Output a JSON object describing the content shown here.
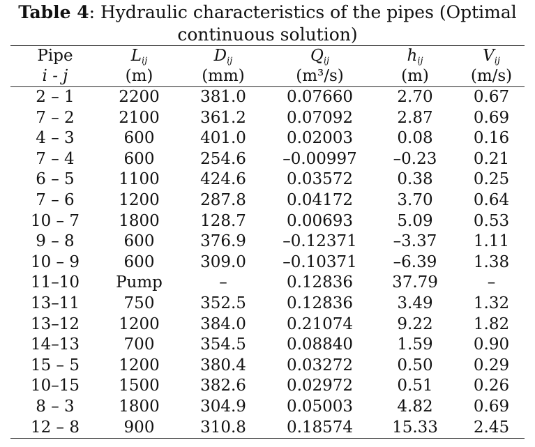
{
  "caption": {
    "label": "Table 4",
    "text": ": Hydraulic characteristics of the pipes (Optimal",
    "text_line2": "continuous solution)"
  },
  "headers": [
    {
      "symbol": "Pipe",
      "sub": "",
      "unit": "i - j",
      "italic_unit": true
    },
    {
      "symbol": "L",
      "sub": "ij",
      "unit": "(m)",
      "italic_unit": false
    },
    {
      "symbol": "D",
      "sub": "ij",
      "unit": "(mm)",
      "italic_unit": false
    },
    {
      "symbol": "Q",
      "sub": "ij",
      "unit": "(m³/s)",
      "italic_unit": false
    },
    {
      "symbol": "h",
      "sub": "ij",
      "unit": "(m)",
      "italic_unit": false
    },
    {
      "symbol": "V",
      "sub": "ij",
      "unit": "(m/s)",
      "italic_unit": false
    }
  ],
  "rows": [
    [
      "2 – 1",
      "2200",
      "381.0",
      "0.07660",
      "2.70",
      "0.67"
    ],
    [
      "7 – 2",
      "2100",
      "361.2",
      "0.07092",
      "2.87",
      "0.69"
    ],
    [
      "4 – 3",
      "600",
      "401.0",
      "0.02003",
      "0.08",
      "0.16"
    ],
    [
      "7 – 4",
      "600",
      "254.6",
      "–0.00997",
      "–0.23",
      "0.21"
    ],
    [
      "6 – 5",
      "1100",
      "424.6",
      "0.03572",
      "0.38",
      "0.25"
    ],
    [
      "7 – 6",
      "1200",
      "287.8",
      "0.04172",
      "3.70",
      "0.64"
    ],
    [
      "10 – 7",
      "1800",
      "128.7",
      "0.00693",
      "5.09",
      "0.53"
    ],
    [
      "9 – 8",
      "600",
      "376.9",
      "–0.12371",
      "–3.37",
      "1.11"
    ],
    [
      "10 – 9",
      "600",
      "309.0",
      "–0.10371",
      "–6.39",
      "1.38"
    ],
    [
      "11–10",
      "Pump",
      "–",
      "0.12836",
      "37.79",
      "–"
    ],
    [
      "13–11",
      "750",
      "352.5",
      "0.12836",
      "3.49",
      "1.32"
    ],
    [
      "13–12",
      "1200",
      "384.0",
      "0.21074",
      "9.22",
      "1.82"
    ],
    [
      "14–13",
      "700",
      "354.5",
      "0.08840",
      "1.59",
      "0.90"
    ],
    [
      "15 – 5",
      "1200",
      "380.4",
      "0.03272",
      "0.50",
      "0.29"
    ],
    [
      "10–15",
      "1500",
      "382.6",
      "0.02972",
      "0.51",
      "0.26"
    ],
    [
      "8 – 3",
      "1800",
      "304.9",
      "0.05003",
      "4.82",
      "0.69"
    ],
    [
      "12 – 8",
      "900",
      "310.8",
      "0.18574",
      "15.33",
      "2.45"
    ]
  ]
}
